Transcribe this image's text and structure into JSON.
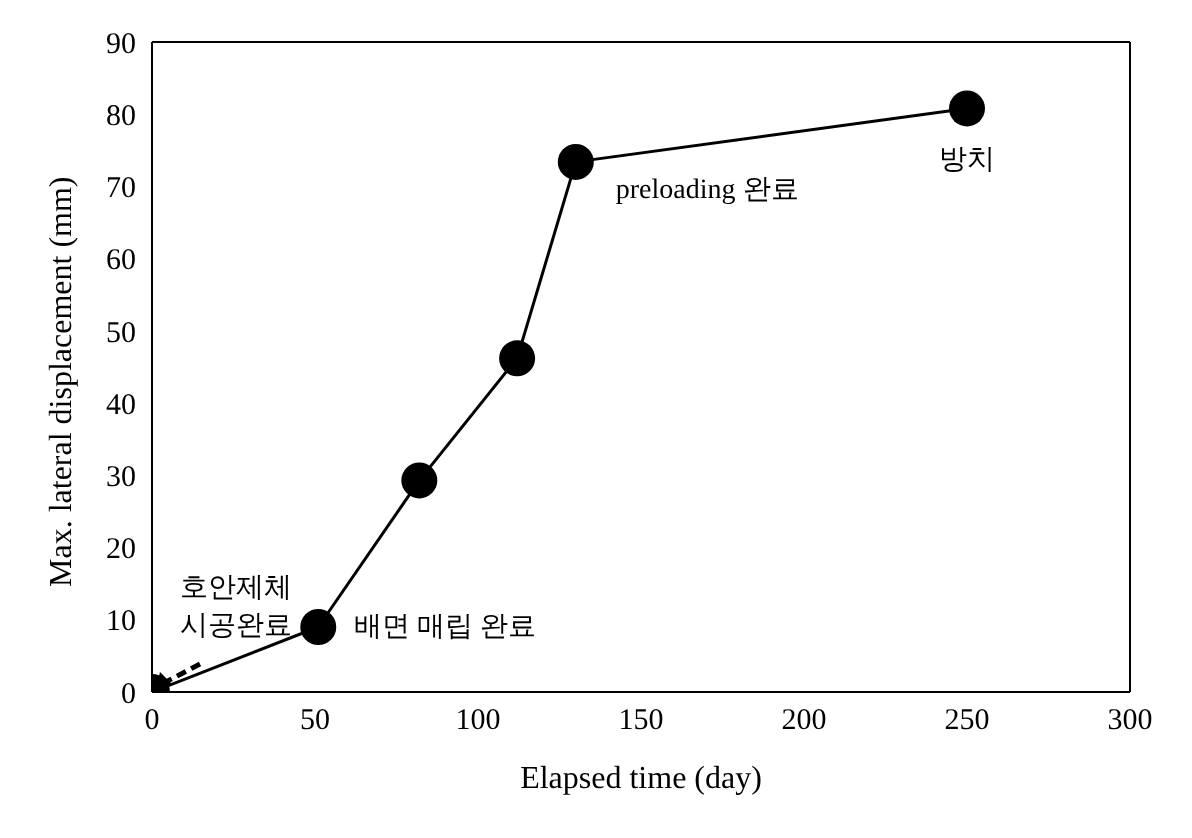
{
  "chart_data": {
    "type": "line",
    "xlabel": "Elapsed time (day)",
    "ylabel": "Max. lateral displacement (mm)",
    "x": [
      0,
      51,
      82,
      112,
      130,
      250
    ],
    "series": [
      {
        "color": "#000000",
        "values": [
          0,
          9,
          29.3,
          46.2,
          73.4,
          80.8
        ]
      }
    ],
    "xlim": [
      0,
      300
    ],
    "xticks": [
      0,
      50,
      100,
      150,
      200,
      250,
      300
    ],
    "ylim": [
      0,
      90
    ],
    "yticks": [
      0,
      10,
      20,
      30,
      40,
      50,
      60,
      70,
      80,
      90
    ],
    "grid": false,
    "legend": false,
    "marker": "circle",
    "line_style": "solid",
    "annotations": [
      {
        "text": "호안제체\n시공완료",
        "x": 0,
        "y": 0
      },
      {
        "text": "배면 매립 완료",
        "x": 51,
        "y": 9
      },
      {
        "text": "preloading 완료",
        "x": 130,
        "y": 73.4
      },
      {
        "text": "방치",
        "x": 250,
        "y": 80.8
      }
    ]
  }
}
